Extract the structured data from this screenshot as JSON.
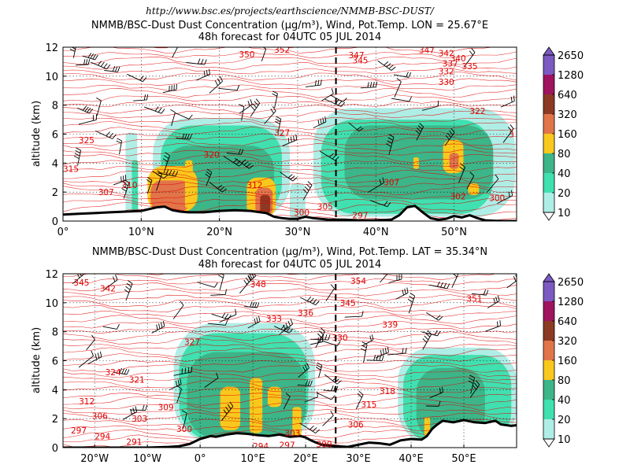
{
  "source_url": "http://www.bsc.es/projects/earthscience/NMMB-BSC-DUST/",
  "colors": {
    "dust": [
      "#aeeee6",
      "#40e0b0",
      "#3cb589",
      "#f9c81d",
      "#e2744a",
      "#8c3a23",
      "#a0135e",
      "#7c5ac2"
    ],
    "isentrope": "#e00000",
    "terrain": "#000000",
    "wind": "#000000",
    "grid": "#000000"
  },
  "chart_data": [
    {
      "type": "heatmap",
      "name": "vertical cross-section along meridian",
      "title_lines": [
        "NMMB/BSC-Dust Dust Concentration (µg/m³), Wind, Pot.Temp. LON = 25.67°E",
        "48h forecast for 04UTC 05 JUL 2014"
      ],
      "ylabel": "altitude (km)",
      "ylim": [
        0,
        12
      ],
      "xlim": [
        0,
        58
      ],
      "grid": true,
      "xticks": [
        0,
        10,
        20,
        30,
        40,
        50
      ],
      "xtick_labels": [
        "0°",
        "10°N",
        "20°N",
        "30°N",
        "40°N",
        "50°N"
      ],
      "yticks": [
        0,
        2,
        4,
        6,
        8,
        10,
        12
      ],
      "ytick_labels": [
        "0",
        "2",
        "4",
        "6",
        "8",
        "10",
        "12"
      ],
      "crosshair_x": 34.9,
      "terrain": [
        [
          0,
          0.45
        ],
        [
          2,
          0.5
        ],
        [
          4,
          0.55
        ],
        [
          6,
          0.6
        ],
        [
          8,
          0.65
        ],
        [
          10,
          0.7
        ],
        [
          12,
          0.95
        ],
        [
          13,
          1.0
        ],
        [
          14,
          0.75
        ],
        [
          15,
          0.65
        ],
        [
          16,
          0.6
        ],
        [
          18,
          0.6
        ],
        [
          20,
          0.7
        ],
        [
          22,
          0.75
        ],
        [
          24,
          0.7
        ],
        [
          26,
          0.55
        ],
        [
          27,
          0.3
        ],
        [
          28,
          0.2
        ],
        [
          29,
          0.15
        ],
        [
          30,
          0.15
        ],
        [
          31,
          0.3
        ],
        [
          32,
          0.2
        ],
        [
          33,
          0.15
        ],
        [
          34,
          0.1
        ],
        [
          36,
          0.1
        ],
        [
          38,
          0.05
        ],
        [
          40,
          0.05
        ],
        [
          42,
          0.1
        ],
        [
          43,
          0.4
        ],
        [
          44,
          0.95
        ],
        [
          45,
          1.05
        ],
        [
          46,
          0.6
        ],
        [
          47,
          0.2
        ],
        [
          48,
          0.1
        ],
        [
          49,
          0.15
        ],
        [
          50,
          0.35
        ],
        [
          51,
          0.25
        ],
        [
          52,
          0.4
        ],
        [
          53,
          0.2
        ],
        [
          54,
          0.05
        ],
        [
          56,
          0.0
        ],
        [
          58,
          0.0
        ]
      ],
      "dust_blobs": [
        {
          "x": [
            8,
            9.5
          ],
          "y": [
            0.2,
            6.1
          ],
          "level": 0
        },
        {
          "x": [
            8.8,
            9.6
          ],
          "y": [
            0.6,
            4.2
          ],
          "level": 1
        },
        {
          "x": [
            11.5,
            29
          ],
          "y": [
            0.2,
            7.1
          ],
          "level": 0
        },
        {
          "x": [
            12.5,
            28
          ],
          "y": [
            0.4,
            6.6
          ],
          "level": 1
        },
        {
          "x": [
            13,
            27
          ],
          "y": [
            0.5,
            5.2
          ],
          "level": 2
        },
        {
          "x": [
            10.8,
            17.2
          ],
          "y": [
            0.6,
            3.8
          ],
          "level": 3
        },
        {
          "x": [
            11.2,
            16.4
          ],
          "y": [
            0.7,
            2.8
          ],
          "level": 4
        },
        {
          "x": [
            15.6,
            16.6
          ],
          "y": [
            0.9,
            4.2
          ],
          "level": 3
        },
        {
          "x": [
            23.5,
            27.2
          ],
          "y": [
            0.3,
            3.0
          ],
          "level": 3
        },
        {
          "x": [
            24.6,
            26.8
          ],
          "y": [
            0.4,
            2.3
          ],
          "level": 4
        },
        {
          "x": [
            25.2,
            26.5
          ],
          "y": [
            0.5,
            1.8
          ],
          "level": 5
        },
        {
          "x": [
            29,
            31
          ],
          "y": [
            0.1,
            2.6
          ],
          "level": 0
        },
        {
          "x": [
            32,
            57.8
          ],
          "y": [
            0.3,
            7.8
          ],
          "level": 0
        },
        {
          "x": [
            33,
            55
          ],
          "y": [
            0.5,
            7.0
          ],
          "level": 1
        },
        {
          "x": [
            36,
            55
          ],
          "y": [
            1.5,
            6.6
          ],
          "level": 2
        },
        {
          "x": [
            48.6,
            51.2
          ],
          "y": [
            3.3,
            5.6
          ],
          "level": 3
        },
        {
          "x": [
            49.4,
            50.6
          ],
          "y": [
            3.6,
            4.7
          ],
          "level": 4
        },
        {
          "x": [
            44.8,
            45.5
          ],
          "y": [
            3.6,
            4.4
          ],
          "level": 3
        },
        {
          "x": [
            51.8,
            53.2
          ],
          "y": [
            1.8,
            2.6
          ],
          "level": 3
        }
      ],
      "isentrope_labels": [
        {
          "text": "325",
          "x": 2,
          "y": 5.6
        },
        {
          "text": "315",
          "x": 0,
          "y": 3.6
        },
        {
          "text": "307",
          "x": 4.5,
          "y": 2.0
        },
        {
          "text": "310",
          "x": 7.5,
          "y": 2.5
        },
        {
          "text": "320",
          "x": 18,
          "y": 4.6
        },
        {
          "text": "327",
          "x": 27,
          "y": 6.1
        },
        {
          "text": "312",
          "x": 23.5,
          "y": 2.5
        },
        {
          "text": "300",
          "x": 29.5,
          "y": 0.6
        },
        {
          "text": "305",
          "x": 32.5,
          "y": 1.0
        },
        {
          "text": "297",
          "x": 37,
          "y": 0.4
        },
        {
          "text": "307",
          "x": 41,
          "y": 2.7
        },
        {
          "text": "302",
          "x": 49.5,
          "y": 1.7
        },
        {
          "text": "300",
          "x": 54.5,
          "y": 1.6
        },
        {
          "text": "350",
          "x": 22.5,
          "y": 11.5
        },
        {
          "text": "352",
          "x": 27,
          "y": 11.85
        },
        {
          "text": "347",
          "x": 36.5,
          "y": 11.45
        },
        {
          "text": "345",
          "x": 37,
          "y": 11.1
        },
        {
          "text": "347",
          "x": 45.5,
          "y": 11.8
        },
        {
          "text": "342",
          "x": 48,
          "y": 11.6
        },
        {
          "text": "340",
          "x": 49.5,
          "y": 11.25
        },
        {
          "text": "337",
          "x": 48.5,
          "y": 10.9
        },
        {
          "text": "332",
          "x": 48,
          "y": 10.35
        },
        {
          "text": "335",
          "x": 51,
          "y": 10.7
        },
        {
          "text": "330",
          "x": 48,
          "y": 9.6
        },
        {
          "text": "322",
          "x": 52,
          "y": 7.6
        },
        {
          "text": "3",
          "x": 57,
          "y": 6.0
        }
      ],
      "colorbar": {
        "levels": [
          "10",
          "20",
          "40",
          "80",
          "160",
          "320",
          "640",
          "1280",
          "2650"
        ],
        "arrows": "both"
      }
    },
    {
      "type": "heatmap",
      "name": "vertical cross-section along parallel",
      "title_lines": [
        "NMMB/BSC-Dust Dust Concentration (µg/m³), Wind, Pot.Temp. LAT = 35.34°N",
        "48h forecast for 04UTC 05 JUL 2014"
      ],
      "ylabel": "altitude (km)",
      "ylim": [
        0,
        12
      ],
      "xlim": [
        -26,
        60
      ],
      "grid": true,
      "xticks": [
        -20,
        -10,
        0,
        10,
        20,
        30,
        40,
        50
      ],
      "xtick_labels": [
        "20°W",
        "10°W",
        "0°",
        "10°E",
        "20°E",
        "30°E",
        "40°E",
        "50°E"
      ],
      "yticks": [
        0,
        2,
        4,
        6,
        8,
        10,
        12
      ],
      "ytick_labels": [
        "0",
        "2",
        "4",
        "6",
        "8",
        "10",
        "12"
      ],
      "crosshair_x": 25.7,
      "terrain": [
        [
          -26,
          0
        ],
        [
          -10,
          0
        ],
        [
          -6,
          0.05
        ],
        [
          -4,
          0.1
        ],
        [
          -2,
          0.25
        ],
        [
          0,
          0.6
        ],
        [
          2,
          0.8
        ],
        [
          3,
          0.75
        ],
        [
          5,
          0.9
        ],
        [
          7,
          1.0
        ],
        [
          9,
          0.95
        ],
        [
          11,
          0.85
        ],
        [
          13,
          0.8
        ],
        [
          15,
          0.9
        ],
        [
          17,
          0.75
        ],
        [
          19,
          0.8
        ],
        [
          20,
          0.7
        ],
        [
          21,
          0.5
        ],
        [
          22,
          0.35
        ],
        [
          23,
          0.2
        ],
        [
          24,
          0.15
        ],
        [
          26,
          0.1
        ],
        [
          28,
          0.05
        ],
        [
          30,
          0.2
        ],
        [
          32,
          0.35
        ],
        [
          34,
          0.3
        ],
        [
          36,
          0.2
        ],
        [
          38,
          0.5
        ],
        [
          40,
          0.6
        ],
        [
          42,
          0.55
        ],
        [
          43,
          0.8
        ],
        [
          44,
          1.3
        ],
        [
          45,
          1.6
        ],
        [
          46,
          1.85
        ],
        [
          48,
          1.75
        ],
        [
          50,
          1.9
        ],
        [
          52,
          1.75
        ],
        [
          54,
          1.7
        ],
        [
          56,
          1.85
        ],
        [
          57,
          1.6
        ],
        [
          59,
          1.5
        ],
        [
          60,
          1.55
        ]
      ],
      "dust_blobs": [
        {
          "x": [
            -5,
            21.8
          ],
          "y": [
            0.3,
            8.6
          ],
          "level": 0
        },
        {
          "x": [
            -4,
            20.5
          ],
          "y": [
            0.4,
            7.9
          ],
          "level": 1
        },
        {
          "x": [
            -2.5,
            20
          ],
          "y": [
            0.6,
            6.6
          ],
          "level": 2
        },
        {
          "x": [
            3.8,
            7.6
          ],
          "y": [
            1.2,
            4.2
          ],
          "level": 3
        },
        {
          "x": [
            9.4,
            11.8
          ],
          "y": [
            1.0,
            4.8
          ],
          "level": 3
        },
        {
          "x": [
            12.8,
            15.4
          ],
          "y": [
            2.8,
            4.2
          ],
          "level": 3
        },
        {
          "x": [
            17.5,
            19.2
          ],
          "y": [
            0.6,
            2.8
          ],
          "level": 3
        },
        {
          "x": [
            37.5,
            60
          ],
          "y": [
            0.3,
            6.9
          ],
          "level": 0
        },
        {
          "x": [
            38.5,
            59
          ],
          "y": [
            0.4,
            6.4
          ],
          "level": 1
        },
        {
          "x": [
            41,
            54
          ],
          "y": [
            0.5,
            5.5
          ],
          "level": 2
        },
        {
          "x": [
            42.5,
            43.6
          ],
          "y": [
            0.6,
            2.1
          ],
          "level": 3
        }
      ],
      "isentrope_labels": [
        {
          "text": "345",
          "x": -24,
          "y": 11.4
        },
        {
          "text": "342",
          "x": -19,
          "y": 11.0
        },
        {
          "text": "348",
          "x": 9.5,
          "y": 11.3
        },
        {
          "text": "354",
          "x": 28.5,
          "y": 11.5
        },
        {
          "text": "345",
          "x": 26.5,
          "y": 10.0
        },
        {
          "text": "351",
          "x": 50.5,
          "y": 10.3
        },
        {
          "text": "336",
          "x": 18.5,
          "y": 9.3
        },
        {
          "text": "333",
          "x": 12.5,
          "y": 8.9
        },
        {
          "text": "339",
          "x": 34.5,
          "y": 8.5
        },
        {
          "text": "330",
          "x": 25,
          "y": 7.6
        },
        {
          "text": "327",
          "x": -3,
          "y": 7.3
        },
        {
          "text": "324",
          "x": -18,
          "y": 5.2
        },
        {
          "text": "321",
          "x": -13.5,
          "y": 4.7
        },
        {
          "text": "318",
          "x": 34,
          "y": 3.9
        },
        {
          "text": "312",
          "x": -23,
          "y": 3.2
        },
        {
          "text": "309",
          "x": -8,
          "y": 2.8
        },
        {
          "text": "315",
          "x": 30.5,
          "y": 3.0
        },
        {
          "text": "306",
          "x": -20.5,
          "y": 2.2
        },
        {
          "text": "303",
          "x": -13,
          "y": 2.0
        },
        {
          "text": "306",
          "x": 28,
          "y": 1.6
        },
        {
          "text": "303",
          "x": 16,
          "y": 1.0
        },
        {
          "text": "300",
          "x": -4.5,
          "y": 1.3
        },
        {
          "text": "297",
          "x": -24.5,
          "y": 1.2
        },
        {
          "text": "294",
          "x": -20,
          "y": 0.8
        },
        {
          "text": "291",
          "x": -14,
          "y": 0.4
        },
        {
          "text": "294",
          "x": 10,
          "y": 0.1
        },
        {
          "text": "297",
          "x": 15,
          "y": 0.2
        },
        {
          "text": "300",
          "x": 22,
          "y": 0.25
        }
      ],
      "colorbar": {
        "levels": [
          "10",
          "20",
          "40",
          "80",
          "160",
          "320",
          "640",
          "1280",
          "2650"
        ],
        "arrows": "both"
      }
    }
  ]
}
